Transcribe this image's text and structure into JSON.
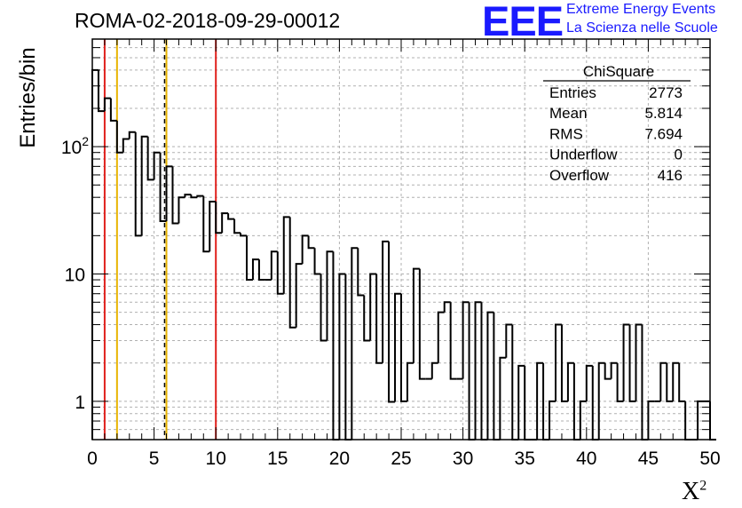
{
  "header": {
    "title": "ROMA-02-2018-09-29-00012",
    "logo_mark": "EEE",
    "logo_line1": "Extreme Energy Events",
    "logo_line2": "La Scienza nelle Scuole"
  },
  "stats": {
    "title": "ChiSquare",
    "rows": [
      {
        "label": "Entries",
        "value": "2773"
      },
      {
        "label": "Mean",
        "value": "5.814"
      },
      {
        "label": "RMS",
        "value": "7.694"
      },
      {
        "label": "Underflow",
        "value": "0"
      },
      {
        "label": "Overflow",
        "value": "416"
      }
    ]
  },
  "colors": {
    "red_line": "#e0201c",
    "yellow_line": "#e8b400",
    "dashed_line": "#000000",
    "histogram": "#000000",
    "grid": "#b0b0b0",
    "logo": "#1a1aff"
  },
  "chart_data": {
    "type": "bar",
    "style": "step-histogram",
    "xlabel": "X",
    "xlabel_superscript": "2",
    "ylabel": "Entries/bin",
    "xlim": [
      0,
      50
    ],
    "ylim": [
      0.5,
      700
    ],
    "yscale": "log",
    "grid": true,
    "x_ticks": [
      "0",
      "5",
      "10",
      "15",
      "20",
      "25",
      "30",
      "35",
      "40",
      "45",
      "50"
    ],
    "y_ticks": [
      {
        "value": 1,
        "label": "1",
        "sup": ""
      },
      {
        "value": 10,
        "label": "10",
        "sup": ""
      },
      {
        "value": 100,
        "label": "10",
        "sup": "2"
      }
    ],
    "bin_width": 0.5,
    "values": [
      400,
      190,
      240,
      160,
      90,
      115,
      130,
      20,
      120,
      55,
      90,
      26,
      70,
      25,
      40,
      42,
      40,
      41,
      15,
      37,
      21,
      30,
      27,
      21,
      20,
      9,
      13,
      9,
      9,
      15,
      7,
      28,
      3.8,
      12,
      20,
      16,
      10,
      3,
      15,
      0,
      10,
      0,
      16,
      6.8,
      3,
      10,
      2,
      18,
      0.99,
      7,
      1,
      2,
      11,
      1.5,
      1.5,
      2,
      5,
      6,
      1.5,
      1.5,
      6,
      0,
      6,
      0.49,
      5,
      0.49,
      2.2,
      4,
      0.49,
      1.9,
      0,
      0.49,
      2,
      0.49,
      1,
      4,
      1,
      2,
      0,
      1,
      1.9,
      0.49,
      2,
      1.5,
      2,
      1,
      4,
      1,
      4,
      0.49,
      1,
      1,
      2,
      1,
      2,
      1,
      0.49,
      0.49,
      1,
      1,
      0.49
    ],
    "vertical_markers": [
      {
        "x": 1.0,
        "style": "solid",
        "color": "red"
      },
      {
        "x": 2.0,
        "style": "solid",
        "color": "yellow"
      },
      {
        "x": 5.85,
        "style": "dashed",
        "color": "black"
      },
      {
        "x": 6.0,
        "style": "solid",
        "color": "yellow"
      },
      {
        "x": 10.0,
        "style": "solid",
        "color": "red"
      }
    ]
  }
}
